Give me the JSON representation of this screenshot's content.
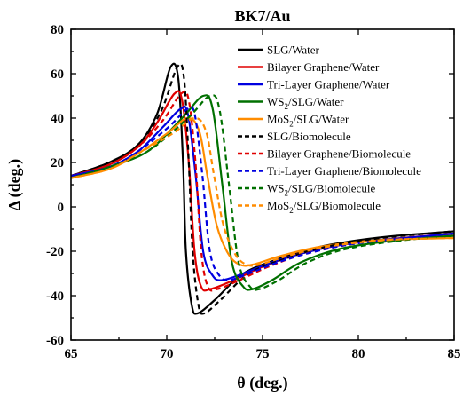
{
  "chart_data": {
    "type": "line",
    "title": "BK7/Au",
    "xlabel": "θ (deg.)",
    "ylabel": "Δ (deg.)",
    "xlim": [
      65,
      85
    ],
    "ylim": [
      -60,
      80
    ],
    "xticks": [
      "65",
      "70",
      "75",
      "80",
      "85"
    ],
    "yticks": [
      "-60",
      "-40",
      "-20",
      "0",
      "20",
      "40",
      "60",
      "80"
    ],
    "grid": false,
    "legend_position": "top-right",
    "series": [
      {
        "name": "SLG/Water",
        "color": "#000000",
        "dash": "solid",
        "points": [
          [
            65,
            14
          ],
          [
            67,
            20
          ],
          [
            68.5,
            28
          ],
          [
            69.5,
            42
          ],
          [
            70.2,
            63
          ],
          [
            70.6,
            58
          ],
          [
            70.85,
            20
          ],
          [
            71.0,
            -20
          ],
          [
            71.3,
            -44
          ],
          [
            71.6,
            -48
          ],
          [
            72.5,
            -42
          ],
          [
            74,
            -30
          ],
          [
            76,
            -23
          ],
          [
            78,
            -18
          ],
          [
            80,
            -15
          ],
          [
            82,
            -13
          ],
          [
            85,
            -11
          ]
        ]
      },
      {
        "name": "Bilayer Graphene/Water",
        "color": "#e00000",
        "dash": "solid",
        "points": [
          [
            65,
            14
          ],
          [
            67,
            19
          ],
          [
            68.5,
            27
          ],
          [
            69.5,
            38
          ],
          [
            70.4,
            51
          ],
          [
            70.8,
            48
          ],
          [
            71.15,
            20
          ],
          [
            71.45,
            -20
          ],
          [
            71.8,
            -36
          ],
          [
            72.3,
            -37
          ],
          [
            73.5,
            -33
          ],
          [
            75,
            -27
          ],
          [
            77,
            -21
          ],
          [
            80,
            -16
          ],
          [
            85,
            -12
          ]
        ]
      },
      {
        "name": "Tri-Layer Graphene/Water",
        "color": "#0000e0",
        "dash": "solid",
        "points": [
          [
            65,
            14
          ],
          [
            67,
            18
          ],
          [
            68.5,
            25
          ],
          [
            69.8,
            36
          ],
          [
            70.7,
            44
          ],
          [
            71.1,
            42
          ],
          [
            71.5,
            15
          ],
          [
            71.9,
            -20
          ],
          [
            72.4,
            -31
          ],
          [
            72.9,
            -33
          ],
          [
            74,
            -30
          ],
          [
            75.5,
            -25
          ],
          [
            77.5,
            -20
          ],
          [
            80,
            -16
          ],
          [
            85,
            -12
          ]
        ]
      },
      {
        "name": "WS2/SLG/Water",
        "color": "#007000",
        "dash": "solid",
        "points": [
          [
            65,
            13
          ],
          [
            67,
            18
          ],
          [
            69,
            25
          ],
          [
            70.8,
            40
          ],
          [
            71.9,
            50
          ],
          [
            72.4,
            44
          ],
          [
            72.9,
            10
          ],
          [
            73.4,
            -25
          ],
          [
            74.0,
            -36
          ],
          [
            74.5,
            -37
          ],
          [
            75.5,
            -33
          ],
          [
            77,
            -25
          ],
          [
            79,
            -19
          ],
          [
            82,
            -15
          ],
          [
            85,
            -13
          ]
        ]
      },
      {
        "name": "MoS2/SLG/Water",
        "color": "#ff8c00",
        "dash": "solid",
        "points": [
          [
            65,
            13
          ],
          [
            67,
            17
          ],
          [
            68.5,
            24
          ],
          [
            70,
            33
          ],
          [
            71.1,
            40
          ],
          [
            71.7,
            34
          ],
          [
            72.1,
            15
          ],
          [
            72.6,
            -8
          ],
          [
            73.2,
            -21
          ],
          [
            73.8,
            -26
          ],
          [
            74.5,
            -26
          ],
          [
            76,
            -22
          ],
          [
            78,
            -18
          ],
          [
            81,
            -15
          ],
          [
            85,
            -14
          ]
        ]
      },
      {
        "name": "SLG/Biomolecule",
        "color": "#000000",
        "dash": "dashed",
        "points": [
          [
            65,
            14
          ],
          [
            67,
            20
          ],
          [
            68.5,
            28
          ],
          [
            69.7,
            43
          ],
          [
            70.55,
            63
          ],
          [
            70.9,
            58
          ],
          [
            71.15,
            20
          ],
          [
            71.35,
            -20
          ],
          [
            71.65,
            -44
          ],
          [
            71.95,
            -48
          ],
          [
            72.8,
            -42
          ],
          [
            74.3,
            -30
          ],
          [
            76.3,
            -23
          ],
          [
            78.3,
            -18
          ],
          [
            80.3,
            -15
          ],
          [
            82.3,
            -13
          ],
          [
            85,
            -11
          ]
        ]
      },
      {
        "name": "Bilayer Graphene/Biomolecule",
        "color": "#e00000",
        "dash": "dashed",
        "points": [
          [
            65,
            14
          ],
          [
            67,
            19
          ],
          [
            68.5,
            27
          ],
          [
            69.8,
            39
          ],
          [
            70.75,
            51
          ],
          [
            71.15,
            48
          ],
          [
            71.5,
            20
          ],
          [
            71.8,
            -20
          ],
          [
            72.15,
            -36
          ],
          [
            72.65,
            -37
          ],
          [
            73.8,
            -33
          ],
          [
            75.3,
            -27
          ],
          [
            77.3,
            -21
          ],
          [
            80.3,
            -16
          ],
          [
            85,
            -12
          ]
        ]
      },
      {
        "name": "Tri-Layer Graphene/Biomolecule",
        "color": "#0000e0",
        "dash": "dashed",
        "points": [
          [
            65,
            14
          ],
          [
            67,
            18
          ],
          [
            68.5,
            25
          ],
          [
            70.1,
            36
          ],
          [
            71.05,
            44
          ],
          [
            71.45,
            42
          ],
          [
            71.85,
            15
          ],
          [
            72.25,
            -20
          ],
          [
            72.75,
            -31
          ],
          [
            73.25,
            -33
          ],
          [
            74.3,
            -30
          ],
          [
            75.8,
            -25
          ],
          [
            77.8,
            -20
          ],
          [
            80.3,
            -16
          ],
          [
            85,
            -12
          ]
        ]
      },
      {
        "name": "WS2/SLG/Biomolecule",
        "color": "#007000",
        "dash": "dashed",
        "points": [
          [
            65,
            13
          ],
          [
            67,
            18
          ],
          [
            69,
            25
          ],
          [
            71.1,
            40
          ],
          [
            72.25,
            50
          ],
          [
            72.75,
            44
          ],
          [
            73.25,
            10
          ],
          [
            73.75,
            -25
          ],
          [
            74.35,
            -36
          ],
          [
            74.85,
            -37
          ],
          [
            75.85,
            -33
          ],
          [
            77.35,
            -25
          ],
          [
            79.35,
            -19
          ],
          [
            82.35,
            -15
          ],
          [
            85,
            -13
          ]
        ]
      },
      {
        "name": "MoS2/SLG/Biomolecule",
        "color": "#ff8c00",
        "dash": "dashed",
        "points": [
          [
            65,
            13
          ],
          [
            67,
            17
          ],
          [
            68.5,
            24
          ],
          [
            70.3,
            33
          ],
          [
            71.45,
            40
          ],
          [
            72.05,
            34
          ],
          [
            72.45,
            15
          ],
          [
            72.95,
            -8
          ],
          [
            73.55,
            -21
          ],
          [
            74.15,
            -26
          ],
          [
            74.85,
            -26
          ],
          [
            76.35,
            -22
          ],
          [
            78.35,
            -18
          ],
          [
            81.35,
            -15
          ],
          [
            85,
            -14
          ]
        ]
      }
    ],
    "legend_labels": [
      {
        "pre": "SLG/Water",
        "sub": "",
        "post": ""
      },
      {
        "pre": "Bilayer Graphene/Water",
        "sub": "",
        "post": ""
      },
      {
        "pre": "Tri-Layer Graphene/Water",
        "sub": "",
        "post": ""
      },
      {
        "pre": "WS",
        "sub": "2",
        "post": "/SLG/Water"
      },
      {
        "pre": "MoS",
        "sub": "2",
        "post": "/SLG/Water"
      },
      {
        "pre": "SLG/Biomolecule",
        "sub": "",
        "post": ""
      },
      {
        "pre": "Bilayer Graphene/Biomolecule",
        "sub": "",
        "post": ""
      },
      {
        "pre": "Tri-Layer Graphene/Biomolecule",
        "sub": "",
        "post": ""
      },
      {
        "pre": "WS",
        "sub": "2",
        "post": "/SLG/Biomolecule"
      },
      {
        "pre": "MoS",
        "sub": "2",
        "post": "/SLG/Biomolecule"
      }
    ]
  }
}
